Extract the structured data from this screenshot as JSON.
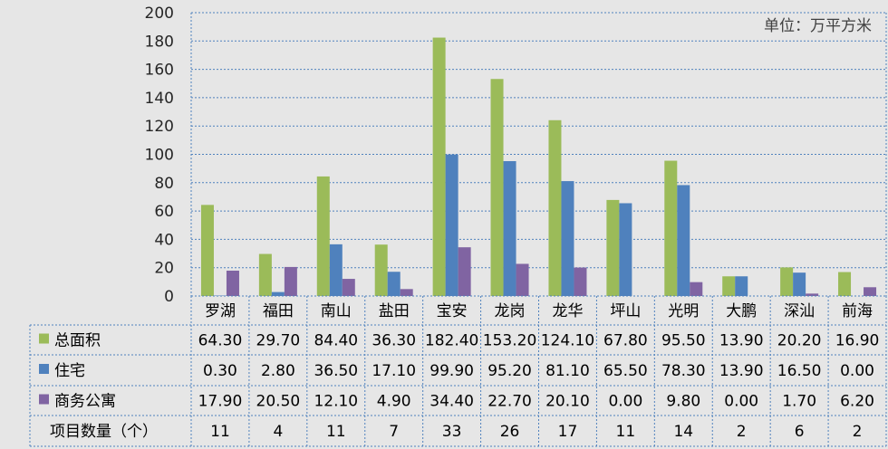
{
  "chart_data": {
    "type": "bar",
    "unit_label": "单位：万平方米",
    "ylim": [
      0,
      200
    ],
    "y_ticks": [
      0,
      20,
      40,
      60,
      80,
      100,
      120,
      140,
      160,
      180,
      200
    ],
    "grid": true,
    "categories": [
      "罗湖",
      "福田",
      "南山",
      "盐田",
      "宝安",
      "龙岗",
      "龙华",
      "坪山",
      "光明",
      "大鹏",
      "深汕",
      "前海"
    ],
    "series": [
      {
        "name": "总面积",
        "color": "#9bbb59",
        "values": [
          64.3,
          29.7,
          84.4,
          36.3,
          182.4,
          153.2,
          124.1,
          67.8,
          95.5,
          13.9,
          20.2,
          16.9
        ],
        "labels": [
          "64.30",
          "29.70",
          "84.40",
          "36.30",
          "182.40",
          "153.20",
          "124.10",
          "67.80",
          "95.50",
          "13.90",
          "20.20",
          "16.90"
        ]
      },
      {
        "name": "住宅",
        "color": "#4f81bd",
        "values": [
          0.3,
          2.8,
          36.5,
          17.1,
          99.9,
          95.2,
          81.1,
          65.5,
          78.3,
          13.9,
          16.5,
          0.0
        ],
        "labels": [
          "0.30",
          "2.80",
          "36.50",
          "17.10",
          "99.90",
          "95.20",
          "81.10",
          "65.50",
          "78.30",
          "13.90",
          "16.50",
          "0.00"
        ]
      },
      {
        "name": "商务公寓",
        "color": "#8064a2",
        "values": [
          17.9,
          20.5,
          12.1,
          4.9,
          34.4,
          22.7,
          20.1,
          0.0,
          9.8,
          0.0,
          1.7,
          6.2
        ],
        "labels": [
          "17.90",
          "20.50",
          "12.10",
          "4.90",
          "34.40",
          "22.70",
          "20.10",
          "0.00",
          "9.80",
          "0.00",
          "1.70",
          "6.20"
        ]
      }
    ],
    "extra_rows": [
      {
        "name": "项目数量（个）",
        "values": [
          "11",
          "4",
          "11",
          "7",
          "33",
          "26",
          "17",
          "11",
          "14",
          "2",
          "6",
          "2"
        ]
      }
    ]
  }
}
